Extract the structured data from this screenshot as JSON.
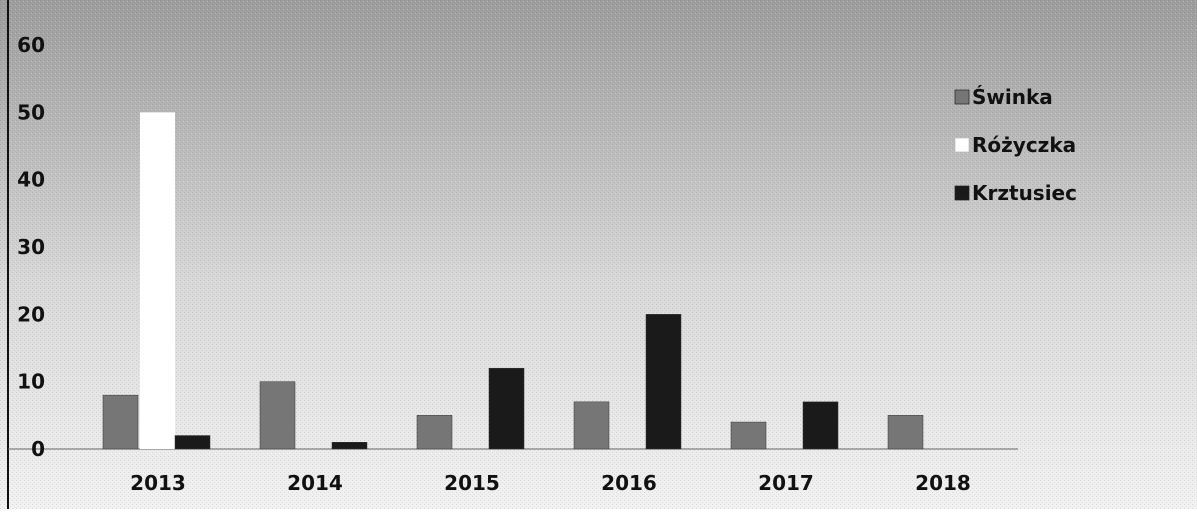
{
  "chart_data": {
    "type": "bar",
    "title": "",
    "xlabel": "",
    "ylabel": "",
    "categories": [
      "2013",
      "2014",
      "2015",
      "2016",
      "2017",
      "2018"
    ],
    "series": [
      {
        "name": "Świnka",
        "color": "#767676",
        "values": [
          8,
          10,
          5,
          7,
          4,
          5
        ]
      },
      {
        "name": "Różyczka",
        "color": "#ffffff",
        "values": [
          50,
          0,
          0,
          0,
          0,
          0
        ]
      },
      {
        "name": "Krztusiec",
        "color": "#1a1a1a",
        "values": [
          2,
          1,
          12,
          20,
          7,
          0
        ]
      }
    ],
    "ylim": [
      0,
      60
    ],
    "yticks": [
      "0",
      "10",
      "20",
      "30",
      "40",
      "50",
      "60"
    ],
    "grid": false,
    "legend_position": "top-right"
  }
}
